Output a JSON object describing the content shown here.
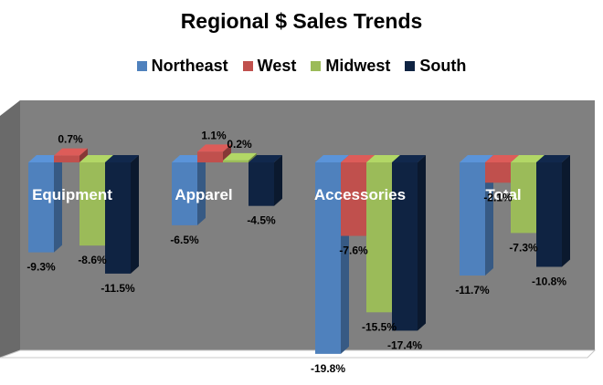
{
  "chart_data": {
    "type": "bar",
    "title": "Regional $ Sales Trends",
    "categories": [
      "Equipment",
      "Apparel",
      "Accessories",
      "Total"
    ],
    "series": [
      {
        "name": "Northeast",
        "values": [
          -9.3,
          -6.5,
          -19.8,
          -11.7
        ],
        "labels": [
          "-9.3%",
          "-6.5%",
          "-19.8%",
          "-11.7%"
        ],
        "color": "#4F81BD"
      },
      {
        "name": "West",
        "values": [
          0.7,
          1.1,
          -7.6,
          -2.1
        ],
        "labels": [
          "0.7%",
          "1.1%",
          "-7.6%",
          "-2.1%"
        ],
        "color": "#C0504D"
      },
      {
        "name": "Midwest",
        "values": [
          -8.6,
          0.2,
          -15.5,
          -7.3
        ],
        "labels": [
          "-8.6%",
          "0.2%",
          "-15.5%",
          "-7.3%"
        ],
        "color": "#9BBB59"
      },
      {
        "name": "South",
        "values": [
          -11.5,
          -4.5,
          -17.4,
          -10.8
        ],
        "labels": [
          "-11.5%",
          "-4.5%",
          "-17.4%",
          "-10.8%"
        ],
        "color": "#0F2342"
      }
    ],
    "legend_position": "top",
    "grid": false,
    "plot_background": "#808080",
    "category_label_color": "#ffffff"
  }
}
